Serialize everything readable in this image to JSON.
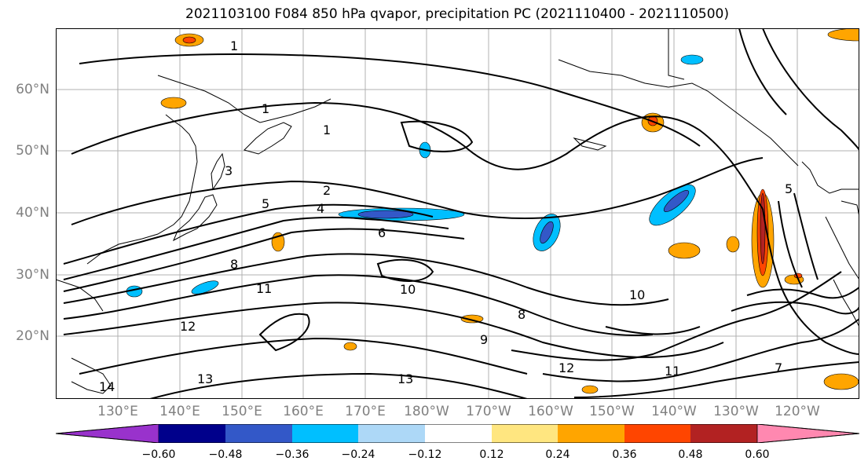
{
  "title": "2021103100 F084 850 hPa qvapor, precipitation PC (2021110400 - 2021110500)",
  "lat_labels": [
    "60°N",
    "50°N",
    "40°N",
    "30°N",
    "20°N"
  ],
  "lon_labels": [
    "130°E",
    "140°E",
    "150°E",
    "160°E",
    "170°E",
    "180°W",
    "170°W",
    "160°W",
    "150°W",
    "140°W",
    "130°W",
    "120°W"
  ],
  "contour_labels": [
    "1",
    "1",
    "1",
    "2",
    "3",
    "4",
    "5",
    "5",
    "6",
    "8",
    "10",
    "10",
    "11",
    "11",
    "12",
    "12",
    "13",
    "13",
    "14",
    "9",
    "8",
    "7"
  ],
  "colorbar": {
    "ticks": [
      "−0.60",
      "−0.48",
      "−0.36",
      "−0.24",
      "−0.12",
      "0.12",
      "0.24",
      "0.36",
      "0.48",
      "0.60"
    ],
    "colors": [
      "#9932CC",
      "#00008B",
      "#3358C8",
      "#00BFFF",
      "#ADD8F7",
      "#FFFFFF",
      "#FFE680",
      "#FFA500",
      "#FF4500",
      "#B22222",
      "#FF88B0"
    ]
  },
  "fill_colors": {
    "neg_light": "#ADD8F7",
    "neg_mid": "#00BFFF",
    "neg_strong": "#3358C8",
    "neg_max": "#00008B",
    "pos_light": "#FFE680",
    "pos_mid": "#FFA500",
    "pos_strong": "#FF4500",
    "pos_max": "#B22222"
  }
}
